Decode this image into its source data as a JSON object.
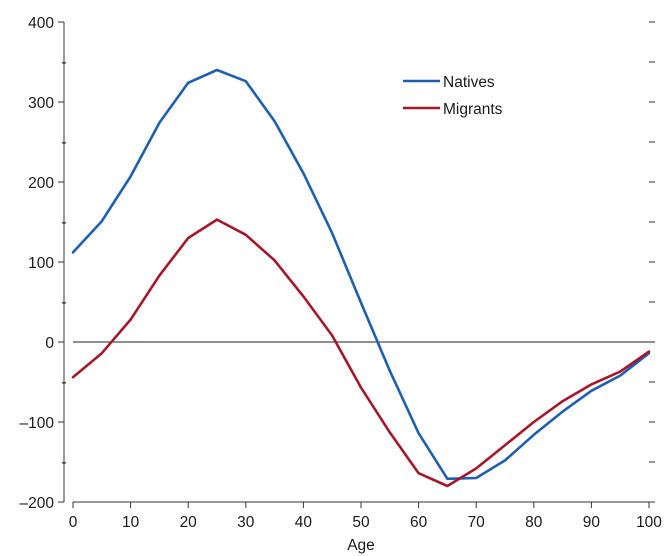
{
  "chart_data": {
    "type": "line",
    "title": "",
    "xlabel": "Age",
    "ylabel": "",
    "xlim": [
      0,
      100
    ],
    "ylim": [
      -200,
      400
    ],
    "x_ticks": [
      0,
      10,
      20,
      30,
      40,
      50,
      60,
      70,
      80,
      90,
      100
    ],
    "x_tick_labels": [
      "0",
      "10",
      "20",
      "30",
      "40",
      "50",
      "60",
      "70",
      "80",
      "90",
      "100"
    ],
    "y_ticks": [
      -200,
      -100,
      0,
      100,
      200,
      300,
      400
    ],
    "y_tick_labels": [
      "–200",
      "–100",
      "0",
      "100",
      "200",
      "300",
      "400"
    ],
    "y_minor_ticks": [
      -150,
      -50,
      50,
      150,
      250,
      350
    ],
    "y_minor_tick_label": "-",
    "zero_line": true,
    "grid": false,
    "legend_position": "top-right",
    "x": [
      0,
      5,
      10,
      15,
      20,
      25,
      30,
      35,
      40,
      45,
      50,
      55,
      60,
      65,
      70,
      75,
      80,
      85,
      90,
      95,
      100
    ],
    "series": [
      {
        "name": "Natives",
        "color": "#1f5fb0",
        "values": [
          112,
          151,
          207,
          274,
          324,
          340,
          326,
          276,
          211,
          136,
          49,
          -36,
          -114,
          -171,
          -170,
          -148,
          -116,
          -87,
          -61,
          -42,
          -14
        ]
      },
      {
        "name": "Migrants",
        "color": "#a4192a",
        "values": [
          -44,
          -14,
          28,
          83,
          130,
          153,
          134,
          102,
          57,
          8,
          -57,
          -113,
          -164,
          -180,
          -158,
          -129,
          -100,
          -74,
          -53,
          -37,
          -12
        ]
      }
    ]
  }
}
